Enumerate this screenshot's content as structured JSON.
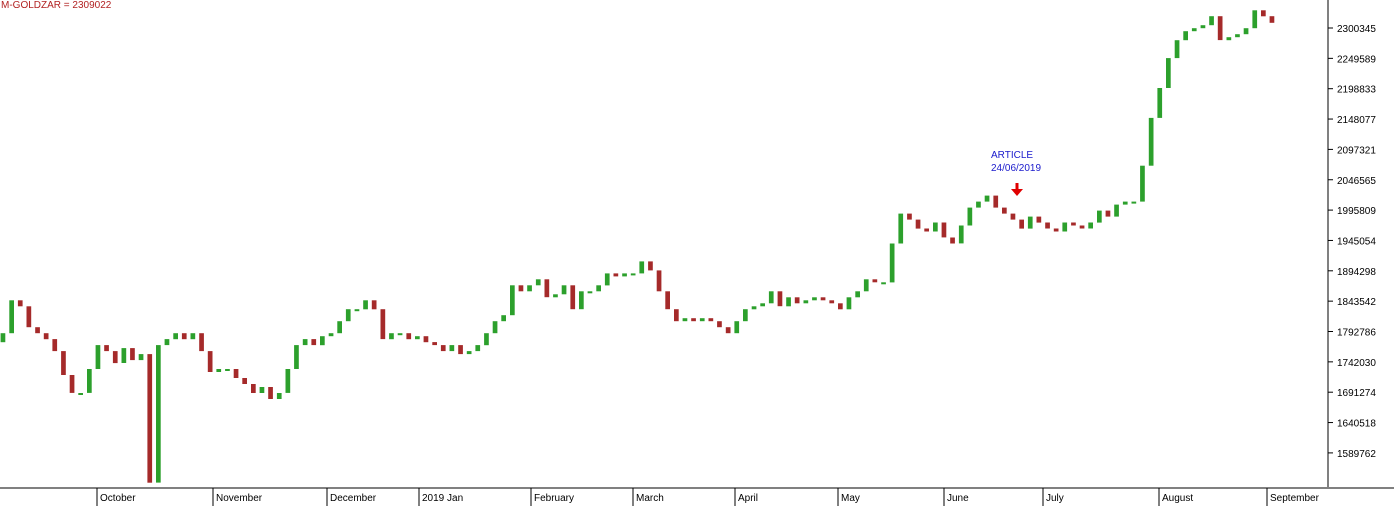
{
  "chart_data": {
    "type": "bar",
    "style": "ohlc-candles",
    "title": "M-GOLDZAR = 2309022",
    "y_ticks": [
      "2300345",
      "2249589",
      "2198833",
      "2148077",
      "2097321",
      "2046565",
      "1995809",
      "1945054",
      "1894298",
      "1843542",
      "1792786",
      "1742030",
      "1691274",
      "1640518",
      "1589762"
    ],
    "ylim": [
      1540000,
      2320000
    ],
    "x_ticks": [
      "October",
      "November",
      "December",
      "2019 Jan",
      "February",
      "March",
      "April",
      "May",
      "June",
      "July",
      "August",
      "September"
    ],
    "annotation": {
      "line1": "ARTICLE",
      "line2": "24/06/2019",
      "marker": "down-arrow"
    },
    "colors": {
      "up": "#2ca02c",
      "down": "#a52a2a",
      "label": "#b22222",
      "annotation": "#1a1acc",
      "arrow": "#e00000"
    },
    "grid": false,
    "weekly_close": [
      1790000,
      1845000,
      1835000,
      1800000,
      1790000,
      1780000,
      1760000,
      1720000,
      1690000,
      1690000,
      1730000,
      1770000,
      1760000,
      1740000,
      1765000,
      1745000,
      1755000,
      1540000,
      1770000,
      1780000,
      1790000,
      1780000,
      1790000,
      1760000,
      1725000,
      1730000,
      1730000,
      1715000,
      1705000,
      1690000,
      1700000,
      1680000,
      1690000,
      1730000,
      1770000,
      1780000,
      1770000,
      1785000,
      1790000,
      1810000,
      1830000,
      1830000,
      1845000,
      1830000,
      1780000,
      1790000,
      1790000,
      1780000,
      1785000,
      1775000,
      1770000,
      1760000,
      1770000,
      1755000,
      1760000,
      1770000,
      1790000,
      1810000,
      1820000,
      1870000,
      1860000,
      1870000,
      1880000,
      1850000,
      1855000,
      1870000,
      1830000,
      1860000,
      1860000,
      1870000,
      1890000,
      1885000,
      1890000,
      1890000,
      1910000,
      1895000,
      1860000,
      1830000,
      1810000,
      1815000,
      1810000,
      1815000,
      1810000,
      1800000,
      1790000,
      1810000,
      1830000,
      1835000,
      1840000,
      1860000,
      1835000,
      1850000,
      1840000,
      1845000,
      1850000,
      1845000,
      1840000,
      1830000,
      1850000,
      1860000,
      1880000,
      1875000,
      1875000,
      1940000,
      1990000,
      1980000,
      1965000,
      1960000,
      1975000,
      1950000,
      1940000,
      1970000,
      2000000,
      2010000,
      2020000,
      2000000,
      1990000,
      1980000,
      1965000,
      1985000,
      1975000,
      1965000,
      1960000,
      1975000,
      1970000,
      1965000,
      1975000,
      1995000,
      1985000,
      2005000,
      2010000,
      2010000,
      2070000,
      2150000,
      2200000,
      2250000,
      2280000,
      2295000,
      2300000,
      2305000,
      2320000,
      2280000,
      2285000,
      2290000,
      2300000,
      2330000,
      2320000,
      2309022
    ]
  }
}
